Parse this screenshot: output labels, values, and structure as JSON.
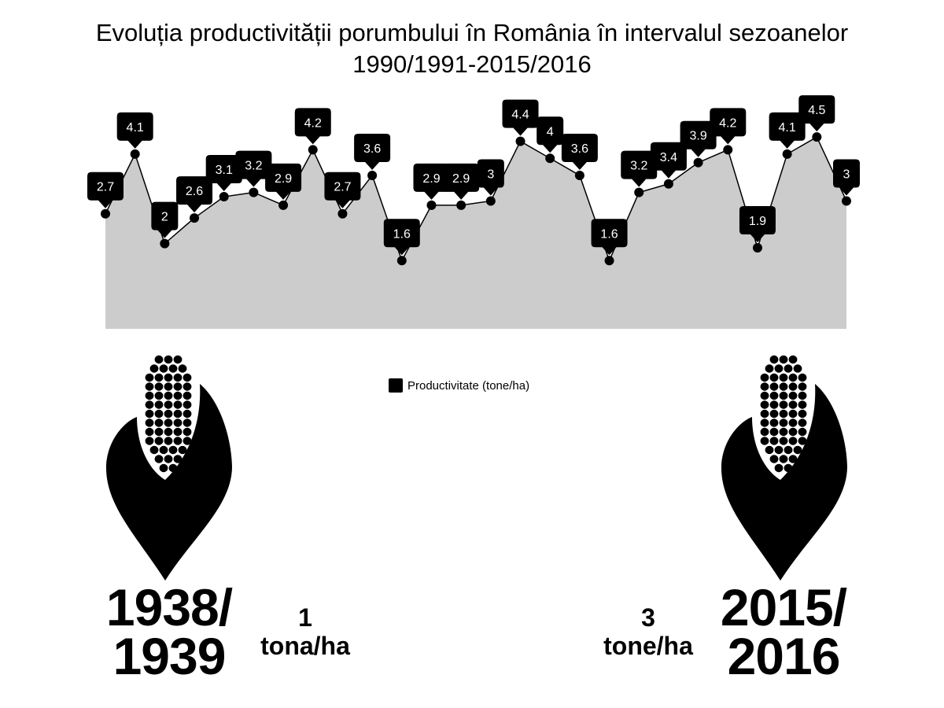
{
  "title": {
    "line1": "Evoluția productivității porumbului în România în intervalul sezoanelor",
    "line2": "1990/1991-2015/2016"
  },
  "legend": {
    "label": "Productivitate (tone/ha)"
  },
  "chart_data": {
    "type": "area",
    "title": "Evoluția productivității porumbului în România în intervalul sezoanelor 1990/1991-2015/2016",
    "series": [
      {
        "name": "Productivitate (tone/ha)",
        "values": [
          2.7,
          4.1,
          2,
          2.6,
          3.1,
          3.2,
          2.9,
          4.2,
          2.7,
          3.6,
          1.6,
          2.9,
          2.9,
          3,
          4.4,
          4,
          3.6,
          1.6,
          3.2,
          3.4,
          3.9,
          4.2,
          1.9,
          4.1,
          4.5,
          3
        ]
      }
    ],
    "ylim": [
      0,
      5.5
    ],
    "grid": false,
    "legend_position": "bottom-center",
    "colors": {
      "fill": "#cccccc",
      "line": "#000000",
      "marker": "#000000",
      "label_bg": "#000000",
      "label_text": "#ffffff"
    }
  },
  "left_panel": {
    "icon": "corn-icon",
    "year_line1": "1938/",
    "year_line2": "1939",
    "yield_value": "1",
    "yield_unit": "tona/ha"
  },
  "right_panel": {
    "icon": "corn-icon",
    "year_line1": "2015/",
    "year_line2": "2016",
    "yield_value": "3",
    "yield_unit": "tone/ha"
  }
}
